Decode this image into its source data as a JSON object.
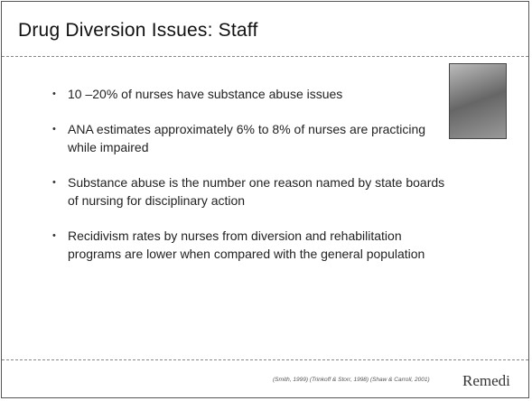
{
  "header": {
    "title": "Drug Diversion Issues: Staff"
  },
  "bullets": [
    "10 –20% of nurses have substance abuse issues",
    "ANA estimates approximately 6% to 8% of nurses are practicing while impaired",
    "Substance abuse is the number one reason named by state boards of nursing for disciplinary action",
    "Recidivism rates by nurses from diversion and rehabilitation programs are lower when compared with the general population"
  ],
  "footer": {
    "citation": "(Smith, 1999) (Trinkoff & Storr, 1998) (Shaw & Carroll, 2001)",
    "logo": "Remedi"
  }
}
